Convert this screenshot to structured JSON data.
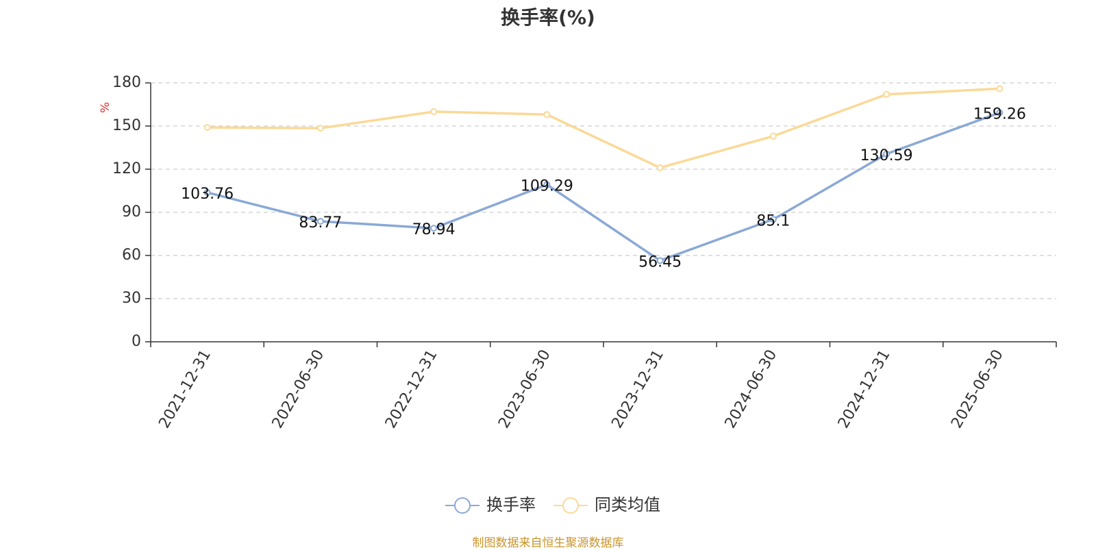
{
  "chart_data": {
    "type": "line",
    "title": "换手率(%)",
    "ylabel": "%",
    "xlabel": "",
    "categories": [
      "2021-12-31",
      "2022-06-30",
      "2022-12-31",
      "2023-06-30",
      "2023-12-31",
      "2024-06-30",
      "2024-12-31",
      "2025-06-30"
    ],
    "ylim": [
      0,
      180
    ],
    "yticks": [
      0,
      30,
      60,
      90,
      120,
      150,
      180
    ],
    "grid": true,
    "legend_position": "bottom",
    "series": [
      {
        "name": "换手率",
        "color": "#8aa9d6",
        "values": [
          103.76,
          83.77,
          78.94,
          109.29,
          56.45,
          85.1,
          130.59,
          159.26
        ],
        "labels": [
          "103.76",
          "83.77",
          "78.94",
          "109.29",
          "56.45",
          "85.1",
          "130.59",
          "159.26"
        ]
      },
      {
        "name": "同类均值",
        "color": "#fbd996",
        "values": [
          149,
          148.5,
          160,
          158,
          121,
          143,
          172,
          176
        ]
      }
    ]
  },
  "source_note": "制图数据来自恒生聚源数据库"
}
